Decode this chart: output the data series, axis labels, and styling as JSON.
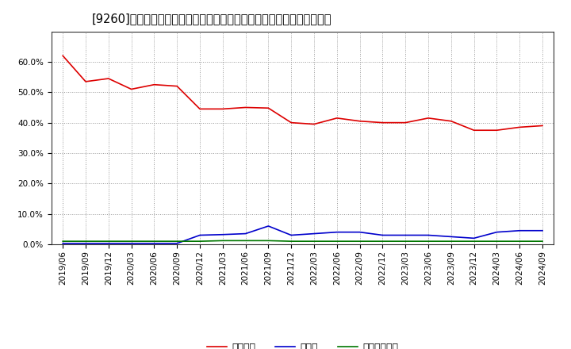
{
  "title": "[9260]　自己資本、のれん、繰延税金資産の総資産に対する比率の推移",
  "x_labels": [
    "2019/06",
    "2019/09",
    "2019/12",
    "2020/03",
    "2020/06",
    "2020/09",
    "2020/12",
    "2021/03",
    "2021/06",
    "2021/09",
    "2021/12",
    "2022/03",
    "2022/06",
    "2022/09",
    "2022/12",
    "2023/03",
    "2023/06",
    "2023/09",
    "2023/12",
    "2024/03",
    "2024/06",
    "2024/09"
  ],
  "jikoshihon": [
    62.0,
    53.5,
    54.5,
    51.0,
    52.5,
    52.0,
    44.5,
    44.5,
    45.0,
    44.8,
    40.0,
    39.5,
    41.5,
    40.5,
    40.0,
    40.0,
    41.5,
    40.5,
    37.5,
    37.5,
    38.5,
    39.0
  ],
  "noren": [
    0.3,
    0.3,
    0.3,
    0.3,
    0.3,
    0.3,
    3.0,
    3.2,
    3.5,
    6.0,
    3.0,
    3.5,
    4.0,
    4.0,
    3.0,
    3.0,
    3.0,
    2.5,
    2.0,
    4.0,
    4.5,
    4.5
  ],
  "kurinobizei": [
    1.0,
    1.0,
    1.0,
    1.0,
    1.0,
    1.0,
    1.0,
    1.2,
    1.2,
    1.2,
    1.0,
    1.0,
    1.0,
    1.0,
    1.0,
    1.0,
    1.0,
    1.0,
    1.0,
    1.0,
    1.0,
    1.0
  ],
  "jikoshihon_color": "#dd0000",
  "noren_color": "#0000cc",
  "kurinobizei_color": "#007700",
  "background_color": "#ffffff",
  "grid_color": "#999999",
  "plot_bg_color": "#ffffff",
  "ylim": [
    0.0,
    70.0
  ],
  "yticks": [
    0.0,
    10.0,
    20.0,
    30.0,
    40.0,
    50.0,
    60.0
  ],
  "legend_labels": [
    "自己資本",
    "のれん",
    "繰延税金資産"
  ],
  "line_width": 1.2,
  "title_fontsize": 10.5,
  "tick_fontsize": 7.5,
  "legend_fontsize": 9
}
